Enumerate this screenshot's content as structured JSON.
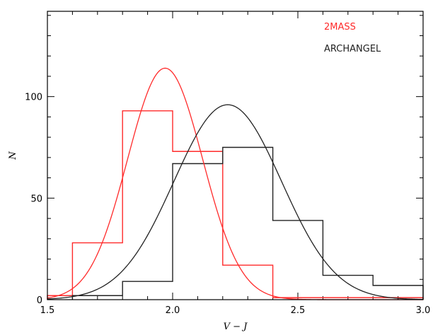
{
  "chart_data": {
    "type": "histogram",
    "xlabel": "V − J",
    "ylabel": "N",
    "xlim": [
      1.5,
      3.0
    ],
    "ylim": [
      0,
      142
    ],
    "x_ticks": [
      {
        "value": 1.5,
        "label": "1.5"
      },
      {
        "value": 2.0,
        "label": "2.0"
      },
      {
        "value": 2.5,
        "label": "2.5"
      },
      {
        "value": 3.0,
        "label": "3.0"
      }
    ],
    "y_ticks": [
      {
        "value": 0,
        "label": "0"
      },
      {
        "value": 50,
        "label": "50"
      },
      {
        "value": 100,
        "label": "100"
      }
    ],
    "x_minor_step": 0.1,
    "y_minor_step": 10,
    "legend_position": "top-right",
    "series": [
      {
        "name": "2MASS",
        "color": "#ff2a2a",
        "bin_edges": [
          1.5,
          1.6,
          1.8,
          2.0,
          2.2,
          2.4,
          3.0
        ],
        "counts": [
          2,
          28,
          93,
          73,
          17,
          1
        ],
        "gauss": {
          "amplitude": 114,
          "mean": 1.97,
          "sigma": 0.15
        }
      },
      {
        "name": "ARCHANGEL",
        "color": "#222222",
        "bin_edges": [
          1.6,
          1.8,
          2.0,
          2.2,
          2.4,
          2.6,
          2.8,
          3.0
        ],
        "counts": [
          2,
          9,
          67,
          75,
          39,
          12,
          7
        ],
        "gauss": {
          "amplitude": 96,
          "mean": 2.22,
          "sigma": 0.215
        }
      }
    ]
  }
}
